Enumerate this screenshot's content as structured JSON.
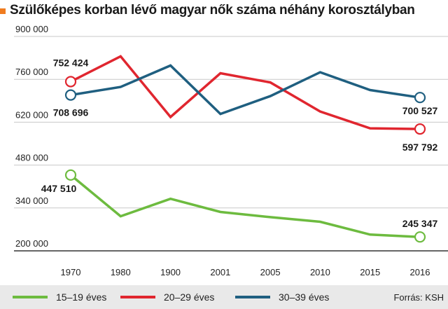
{
  "title": "Szülőképes korban lévő magyar nők száma néhány korosztályban",
  "source": "Forrás: KSH",
  "chart_data": {
    "type": "line",
    "categories": [
      "1970",
      "1980",
      "1900",
      "2001",
      "2005",
      "2010",
      "2015",
      "2016"
    ],
    "ylim": [
      200000,
      900000
    ],
    "yticks": [
      "200 000",
      "340 000",
      "480 000",
      "620 000",
      "760 000",
      "900 000"
    ],
    "ytick_values": [
      200000,
      340000,
      480000,
      620000,
      760000,
      900000
    ],
    "grid": true,
    "legend_position": "bottom",
    "series": [
      {
        "name": "15–19 éves",
        "color": "#6dbb3f",
        "values": [
          447510,
          313000,
          370000,
          327000,
          310000,
          295000,
          253000,
          245347
        ],
        "first_label": "447 510",
        "last_label": "245 347"
      },
      {
        "name": "20–29 éves",
        "color": "#e0262f",
        "values": [
          752424,
          835000,
          637000,
          780000,
          750000,
          655000,
          600000,
          597792
        ],
        "first_label": "752 424",
        "last_label": "597 792"
      },
      {
        "name": "30–39 éves",
        "color": "#1f5f80",
        "values": [
          708696,
          735000,
          805000,
          647000,
          705000,
          783000,
          725000,
          700527
        ],
        "first_label": "708 696",
        "last_label": "700 527"
      }
    ]
  }
}
